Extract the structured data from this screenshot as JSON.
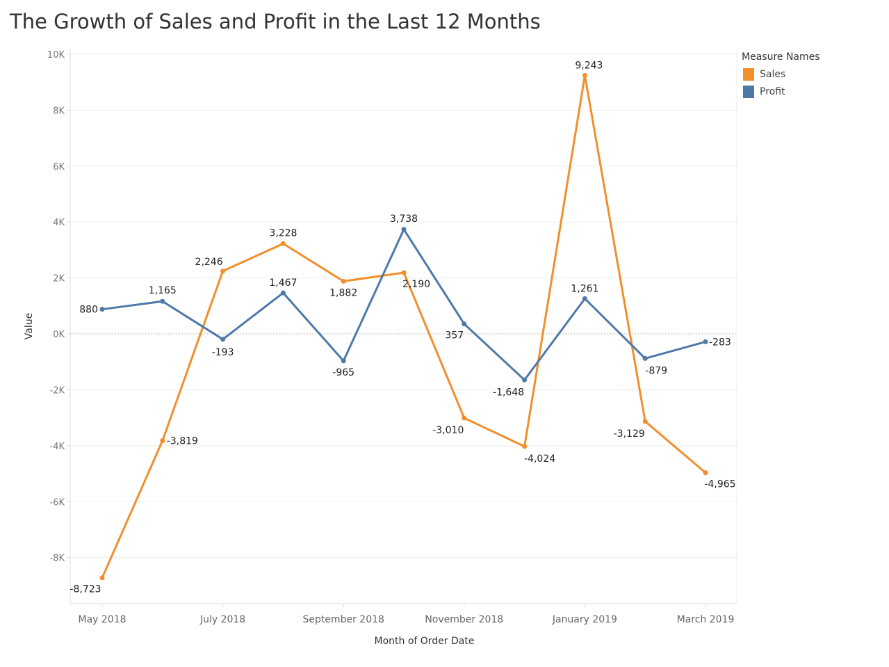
{
  "title": "The Growth of Sales and Profit in the Last 12 Months",
  "legend": {
    "title": "Measure Names",
    "items": [
      {
        "label": "Sales",
        "color": "#f28e2b"
      },
      {
        "label": "Profit",
        "color": "#4e79a7"
      }
    ]
  },
  "chart_data": {
    "type": "line",
    "title": "The Growth of Sales and Profit in the Last 12 Months",
    "xlabel": "Month of Order Date",
    "ylabel": "Value",
    "x": [
      "2018-05",
      "2018-06",
      "2018-07",
      "2018-08",
      "2018-09",
      "2018-10",
      "2018-11",
      "2018-12",
      "2019-01",
      "2019-02",
      "2019-03"
    ],
    "x_tick_labels": [
      {
        "x": "2018-05",
        "label": "May 2018"
      },
      {
        "x": "2018-07",
        "label": "July 2018"
      },
      {
        "x": "2018-09",
        "label": "September 2018"
      },
      {
        "x": "2018-11",
        "label": "November 2018"
      },
      {
        "x": "2019-01",
        "label": "January 2019"
      },
      {
        "x": "2019-03",
        "label": "March 2019"
      }
    ],
    "y_ticks": [
      {
        "value": 10000,
        "label": "10K"
      },
      {
        "value": 8000,
        "label": "8K"
      },
      {
        "value": 6000,
        "label": "6K"
      },
      {
        "value": 4000,
        "label": "4K"
      },
      {
        "value": 2000,
        "label": "2K"
      },
      {
        "value": 0,
        "label": "0K"
      },
      {
        "value": -2000,
        "label": "-2K"
      },
      {
        "value": -4000,
        "label": "-4K"
      },
      {
        "value": -6000,
        "label": "-6K"
      },
      {
        "value": -8000,
        "label": "-8K"
      }
    ],
    "ylim": [
      -9650,
      10200
    ],
    "grid": true,
    "legend_position": "top-right",
    "series": [
      {
        "name": "Sales",
        "color": "#f28e2b",
        "values": [
          -8723,
          -3819,
          2246,
          3228,
          1882,
          2190,
          -3010,
          -4024,
          9243,
          -3129,
          -4965
        ],
        "labels": [
          "-8,723",
          "-3,819",
          "2,246",
          "3,228",
          "1,882",
          "2,190",
          "-3,010",
          "-4,024",
          "9,243",
          "-3,129",
          "-4,965"
        ]
      },
      {
        "name": "Profit",
        "color": "#4e79a7",
        "values": [
          880,
          1165,
          -193,
          1467,
          -965,
          3738,
          357,
          -1648,
          1261,
          -879,
          -283
        ],
        "labels": [
          "880",
          "1,165",
          "-193",
          "1,467",
          "-965",
          "3,738",
          "357",
          "-1,648",
          "1,261",
          "-879",
          "-283"
        ]
      }
    ]
  }
}
